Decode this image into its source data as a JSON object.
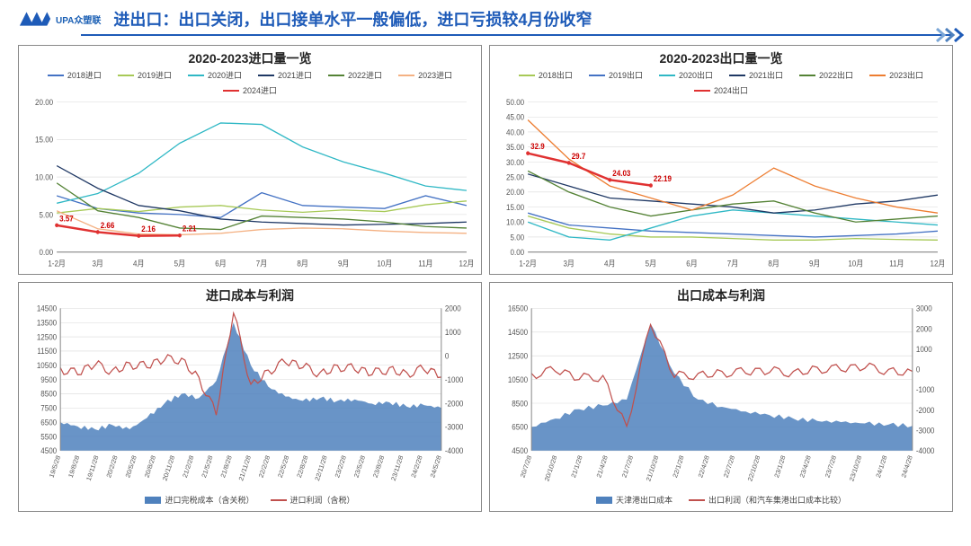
{
  "header": {
    "logo_text": "UPA众塑联",
    "title": "进出口：出口关闭，出口接单水平一般偏低，进口亏损较4月份收窄"
  },
  "colors": {
    "brand": "#1e5bb8",
    "grid": "#d9d9d9",
    "axis": "#888"
  },
  "import_line": {
    "title": "2020-2023进口量一览",
    "categories": [
      "1-2月",
      "3月",
      "4月",
      "5月",
      "6月",
      "7月",
      "8月",
      "9月",
      "10月",
      "11月",
      "12月"
    ],
    "series": [
      {
        "name": "2018进口",
        "color": "#4472c4",
        "values": [
          7.5,
          5.8,
          5.2,
          5.0,
          4.6,
          7.9,
          6.2,
          6.0,
          5.8,
          7.5,
          6.2
        ]
      },
      {
        "name": "2019进口",
        "color": "#a7c957",
        "values": [
          5.2,
          5.8,
          5.4,
          6.0,
          6.2,
          5.6,
          5.3,
          5.6,
          5.4,
          6.3,
          6.8
        ]
      },
      {
        "name": "2020进口",
        "color": "#2fb8c5",
        "values": [
          6.5,
          7.8,
          10.5,
          14.5,
          17.2,
          17.0,
          14.0,
          12.0,
          10.5,
          8.8,
          8.2
        ]
      },
      {
        "name": "2021进口",
        "color": "#1f3864",
        "values": [
          11.5,
          8.5,
          6.2,
          5.5,
          4.4,
          4.0,
          3.8,
          3.6,
          3.7,
          3.8,
          4.0
        ]
      },
      {
        "name": "2022进口",
        "color": "#548235",
        "values": [
          9.2,
          5.5,
          4.6,
          3.2,
          3.0,
          4.8,
          4.6,
          4.4,
          4.0,
          3.4,
          3.2
        ]
      },
      {
        "name": "2023进口",
        "color": "#f4b183",
        "values": [
          5.5,
          3.1,
          2.4,
          2.3,
          2.5,
          3.0,
          3.2,
          3.1,
          2.8,
          2.6,
          2.5
        ]
      },
      {
        "name": "2024进口",
        "color": "#e03131",
        "values": [
          3.57,
          2.66,
          2.16,
          2.21,
          null,
          null,
          null,
          null,
          null,
          null,
          null
        ]
      }
    ],
    "ylim": [
      0,
      20
    ],
    "ytick_step": 5,
    "point_labels": [
      [
        0,
        3.57
      ],
      [
        1,
        2.66
      ],
      [
        2,
        2.16
      ],
      [
        3,
        2.21
      ]
    ]
  },
  "export_line": {
    "title": "2020-2023出口量一览",
    "categories": [
      "1-2月",
      "3月",
      "4月",
      "5月",
      "6月",
      "7月",
      "8月",
      "9月",
      "10月",
      "11月",
      "12月"
    ],
    "series": [
      {
        "name": "2018出口",
        "color": "#a7c957",
        "values": [
          12,
          8,
          6,
          5,
          5,
          4.5,
          4,
          4,
          4.5,
          4.2,
          4
        ]
      },
      {
        "name": "2019出口",
        "color": "#4472c4",
        "values": [
          13,
          9,
          8,
          7,
          6.5,
          6,
          5.5,
          5,
          5.5,
          6,
          7
        ]
      },
      {
        "name": "2020出口",
        "color": "#2fb8c5",
        "values": [
          10,
          5,
          4,
          8,
          12,
          14,
          13,
          12,
          11,
          10,
          9
        ]
      },
      {
        "name": "2021出口",
        "color": "#1f3864",
        "values": [
          26,
          22,
          18,
          17,
          16,
          15,
          13,
          14,
          16,
          17,
          19
        ]
      },
      {
        "name": "2022出口",
        "color": "#548235",
        "values": [
          27,
          20,
          15,
          12,
          14,
          16,
          17,
          13,
          10,
          11,
          12
        ]
      },
      {
        "name": "2023出口",
        "color": "#ed7d31",
        "values": [
          44,
          31,
          22,
          18,
          14,
          19,
          28,
          22,
          18,
          15,
          13
        ]
      },
      {
        "name": "2024出口",
        "color": "#e03131",
        "values": [
          32.9,
          29.7,
          24.03,
          22.19,
          null,
          null,
          null,
          null,
          null,
          null,
          null
        ]
      }
    ],
    "ylim": [
      0,
      50
    ],
    "ytick_step": 5,
    "point_labels": [
      [
        0,
        32.9
      ],
      [
        1,
        29.7
      ],
      [
        2,
        24.03
      ],
      [
        3,
        22.19
      ]
    ]
  },
  "import_cost": {
    "title": "进口成本与利润",
    "legend": [
      {
        "name": "进口完税成本（含关税）",
        "color": "#4f81bd",
        "type": "area"
      },
      {
        "name": "进口利润（含税）",
        "color": "#c0504d",
        "type": "line"
      }
    ],
    "x_labels": [
      "19/5/28",
      "19/8/28",
      "19/11/28",
      "20/2/28",
      "20/5/28",
      "20/8/28",
      "20/11/28",
      "21/2/28",
      "21/5/28",
      "21/8/28",
      "21/11/28",
      "22/2/28",
      "22/5/28",
      "22/8/28",
      "22/11/28",
      "23/2/28",
      "23/5/28",
      "23/8/28",
      "23/11/28",
      "24/2/28",
      "24/5/28"
    ],
    "y_left": {
      "lim": [
        4500,
        14500
      ],
      "step": 1000
    },
    "y_right": {
      "lim": [
        -4000,
        2000
      ],
      "step": 1000
    },
    "area": [
      6500,
      6200,
      6000,
      6300,
      6000,
      6800,
      7800,
      8500,
      8200,
      9400,
      13500,
      10500,
      9000,
      8300,
      8000,
      8200,
      8000,
      8100,
      7800,
      7900,
      7600,
      7700,
      7500
    ],
    "line": [
      -500,
      -800,
      -400,
      -600,
      -300,
      -500,
      -200,
      -100,
      -900,
      -2500,
      1800,
      -1200,
      -600,
      -300,
      -500,
      -700,
      -400,
      -600,
      -800,
      -500,
      -700,
      -600,
      -900
    ]
  },
  "export_cost": {
    "title": "出口成本与利润",
    "legend": [
      {
        "name": "天津港出口成本",
        "color": "#4f81bd",
        "type": "area"
      },
      {
        "name": "出口利润（和汽车集港出口成本比较）",
        "color": "#c0504d",
        "type": "line"
      }
    ],
    "x_labels": [
      "20/7/28",
      "20/10/28",
      "21/1/28",
      "21/4/28",
      "21/7/28",
      "21/10/28",
      "22/1/28",
      "22/4/28",
      "22/7/28",
      "22/10/28",
      "23/1/28",
      "23/4/28",
      "23/7/28",
      "23/10/28",
      "24/1/28",
      "24/4/28"
    ],
    "y_left": {
      "lim": [
        4500,
        16500
      ],
      "step": 2000
    },
    "y_right": {
      "lim": [
        -4000,
        3000
      ],
      "step": 1000
    },
    "area": [
      6500,
      7200,
      8000,
      8300,
      8800,
      15200,
      11000,
      8800,
      8200,
      7800,
      7500,
      7200,
      7000,
      6900,
      6800,
      6700,
      6600
    ],
    "line": [
      -200,
      -100,
      -500,
      -300,
      -2800,
      2200,
      -400,
      -200,
      -100,
      -200,
      -150,
      -100,
      100,
      -50,
      50,
      0,
      -100
    ]
  }
}
